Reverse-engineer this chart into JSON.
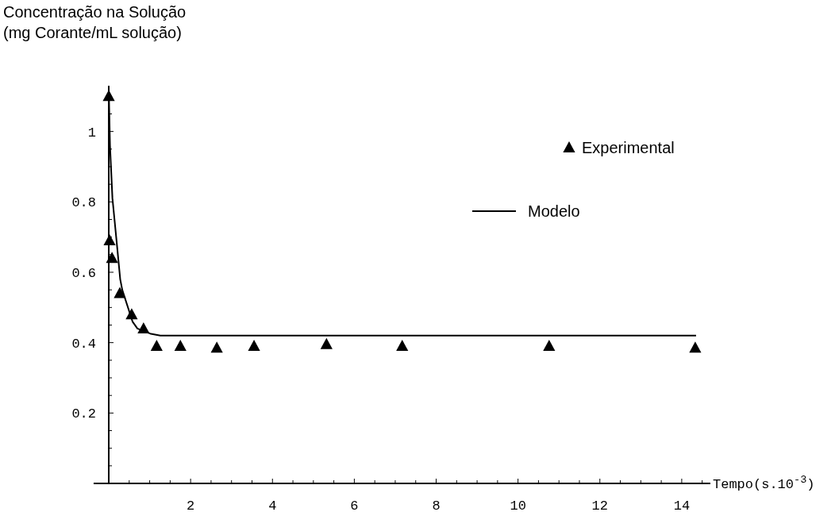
{
  "chart_data": {
    "type": "scatter",
    "ylabel": "Concentração na Solução\n(mg Corante/mL solução)",
    "xlabel": "Tempo(s.10$^{-3}$)",
    "series": [
      {
        "name": "Experimental",
        "color": "#000000",
        "marker": "triangle",
        "x": [
          0,
          0.02,
          0.08,
          0.27,
          0.56,
          0.85,
          1.17,
          1.75,
          2.64,
          3.55,
          5.32,
          7.17,
          10.76,
          14.33
        ],
        "values": [
          1.1,
          0.69,
          0.64,
          0.54,
          0.48,
          0.44,
          0.39,
          0.39,
          0.385,
          0.39,
          0.395,
          0.39,
          0.39,
          0.385
        ]
      },
      {
        "name": "Modelo",
        "type": "line",
        "color": "#000000",
        "line_style": "solid",
        "x": [
          0,
          0.03,
          0.09,
          0.19,
          0.28,
          0.33,
          0.58,
          0.7,
          1.03,
          1.26,
          14.35
        ],
        "values": [
          1.12,
          0.96,
          0.81,
          0.69,
          0.58,
          0.55,
          0.46,
          0.44,
          0.425,
          0.42,
          0.42
        ]
      }
    ],
    "xlim": [
      -0.37,
      14.7
    ],
    "ylim": [
      0,
      1.13
    ],
    "xticks": [
      {
        "value": 2,
        "label": "2"
      },
      {
        "value": 4,
        "label": "4"
      },
      {
        "value": 6,
        "label": "6"
      },
      {
        "value": 8,
        "label": "8"
      },
      {
        "value": 10,
        "label": "10"
      },
      {
        "value": 12,
        "label": "12"
      },
      {
        "value": 14,
        "label": "14"
      }
    ],
    "yticks": [
      {
        "value": 0.2,
        "label": "0.2"
      },
      {
        "value": 0.4,
        "label": "0.4"
      },
      {
        "value": 0.6,
        "label": "0.6"
      },
      {
        "value": 0.8,
        "label": "0.8"
      },
      {
        "value": 1,
        "label": "1"
      }
    ],
    "grid": false,
    "legend": "top right"
  }
}
